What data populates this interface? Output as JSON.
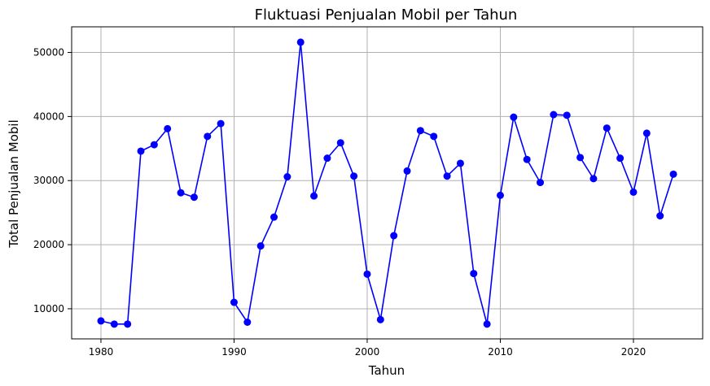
{
  "chart_data": {
    "type": "line",
    "title": "Fluktuasi Penjualan Mobil per Tahun",
    "xlabel": "Tahun",
    "ylabel": "Total Penjualan Mobil",
    "xlim": [
      1977.8,
      2025.2
    ],
    "ylim": [
      5300,
      54000
    ],
    "xticks": [
      1980,
      1990,
      2000,
      2010,
      2020
    ],
    "yticks": [
      10000,
      20000,
      30000,
      40000,
      50000
    ],
    "grid": true,
    "line_color": "#0000ff",
    "marker": "circle",
    "series": [
      {
        "x": [
          1980,
          1981,
          1982,
          1983,
          1984,
          1985,
          1986,
          1987,
          1988,
          1989,
          1990,
          1991,
          1992,
          1993,
          1994,
          1995,
          1996,
          1997,
          1998,
          1999,
          2000,
          2001,
          2002,
          2003,
          2004,
          2005,
          2006,
          2007,
          2008,
          2009,
          2010,
          2011,
          2012,
          2013,
          2014,
          2015,
          2016,
          2017,
          2018,
          2019,
          2020,
          2021,
          2022,
          2023
        ],
        "values": [
          8100,
          7600,
          7600,
          34600,
          35600,
          38100,
          28100,
          27400,
          36900,
          38900,
          11000,
          7900,
          19800,
          24300,
          30600,
          51600,
          27600,
          33500,
          35900,
          30700,
          15400,
          8300,
          21400,
          31500,
          37800,
          36900,
          30700,
          32700,
          15500,
          7600,
          27700,
          39900,
          33300,
          29700,
          40300,
          40200,
          33600,
          30300,
          38200,
          33500,
          28200,
          37400,
          24500,
          31000
        ]
      }
    ]
  }
}
